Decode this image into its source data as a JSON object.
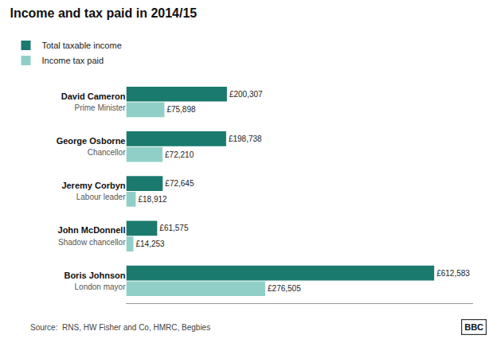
{
  "chart_data": {
    "type": "bar",
    "orientation": "horizontal",
    "title": "Income and tax paid in 2014/15",
    "categories": [
      "David Cameron\nPrime Minister",
      "George Osborne\nChancellor",
      "Jeremy Corbyn\nLabour leader",
      "John McDonnell\nShadow chancellor",
      "Boris Johnson\nLondon mayor"
    ],
    "series": [
      {
        "name": "Total taxable income",
        "color": "#1a7a6e",
        "values": [
          200307,
          198738,
          72645,
          61575,
          612583
        ],
        "value_labels": [
          "£200,307",
          "£198,738",
          "£72,645",
          "£61,575",
          "£612,583"
        ]
      },
      {
        "name": "Income tax paid",
        "color": "#90cfc7",
        "values": [
          75898,
          72210,
          18912,
          14253,
          276505
        ],
        "value_labels": [
          "£75,898",
          "£72,210",
          "£18,912",
          "£14,253",
          "£276,505"
        ]
      }
    ],
    "xlim": [
      0,
      690000
    ],
    "tick_labels": "y",
    "grid": false,
    "legend": "upper left",
    "data_labels": true,
    "annotations": [
      "Source:  RNS, HW Fisher and Co, HMRC, Begbies",
      "BBC"
    ]
  }
}
